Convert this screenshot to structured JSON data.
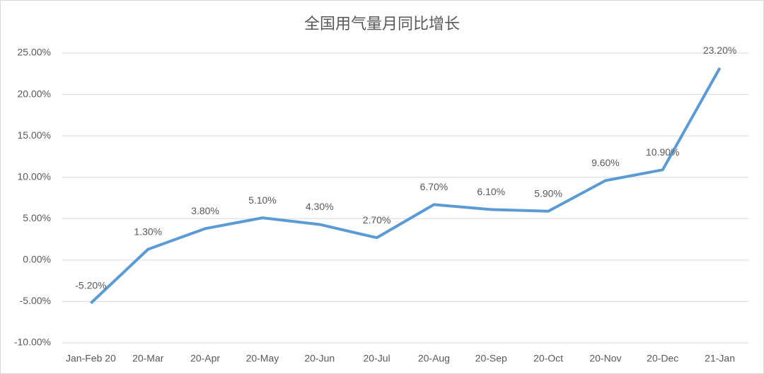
{
  "chart_data": {
    "type": "line",
    "title": "全国用气量月同比增长",
    "categories": [
      "Jan-Feb 20",
      "20-Mar",
      "20-Apr",
      "20-May",
      "20-Jun",
      "20-Jul",
      "20-Aug",
      "20-Sep",
      "20-Oct",
      "20-Nov",
      "20-Dec",
      "21-Jan"
    ],
    "series": [
      {
        "color": "#5b9bd5",
        "values": [
          -5.2,
          1.3,
          3.8,
          5.1,
          4.3,
          2.7,
          6.7,
          6.1,
          5.9,
          9.6,
          10.9,
          23.2
        ],
        "value_labels": [
          "-5.20%",
          "1.30%",
          "3.80%",
          "5.10%",
          "4.30%",
          "2.70%",
          "6.70%",
          "6.10%",
          "5.90%",
          "9.60%",
          "10.90%",
          "23.20%"
        ]
      }
    ],
    "ylim": [
      -10,
      25
    ],
    "yticks": [
      {
        "value": -10,
        "label": "-10.00%"
      },
      {
        "value": -5,
        "label": "-5.00%"
      },
      {
        "value": 0,
        "label": "0.00%"
      },
      {
        "value": 5,
        "label": "5.00%"
      },
      {
        "value": 10,
        "label": "10.00%"
      },
      {
        "value": 15,
        "label": "15.00%"
      },
      {
        "value": 20,
        "label": "20.00%"
      },
      {
        "value": 25,
        "label": "25.00%"
      }
    ],
    "grid": true
  }
}
